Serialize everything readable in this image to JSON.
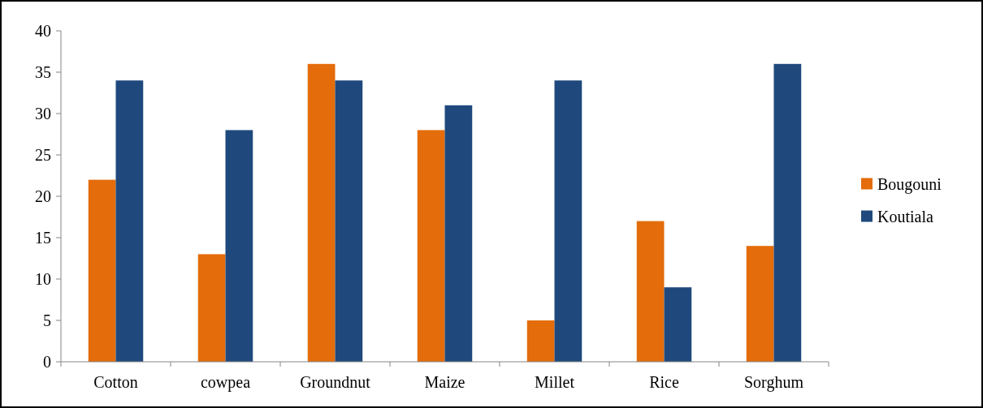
{
  "chart_data": {
    "type": "bar",
    "categories": [
      "Cotton",
      "cowpea",
      "Groundnut",
      "Maize",
      "Millet",
      "Rice",
      "Sorghum"
    ],
    "series": [
      {
        "name": "Bougouni",
        "color": "#e46c0a",
        "values": [
          22,
          13,
          36,
          28,
          5,
          17,
          14
        ]
      },
      {
        "name": "Koutiala",
        "color": "#1f497d",
        "values": [
          34,
          28,
          34,
          31,
          34,
          9,
          36
        ]
      }
    ],
    "ylim": [
      0,
      40
    ],
    "yticks": [
      0,
      5,
      10,
      15,
      20,
      25,
      30,
      35,
      40
    ],
    "grid": false,
    "legend": "right"
  }
}
